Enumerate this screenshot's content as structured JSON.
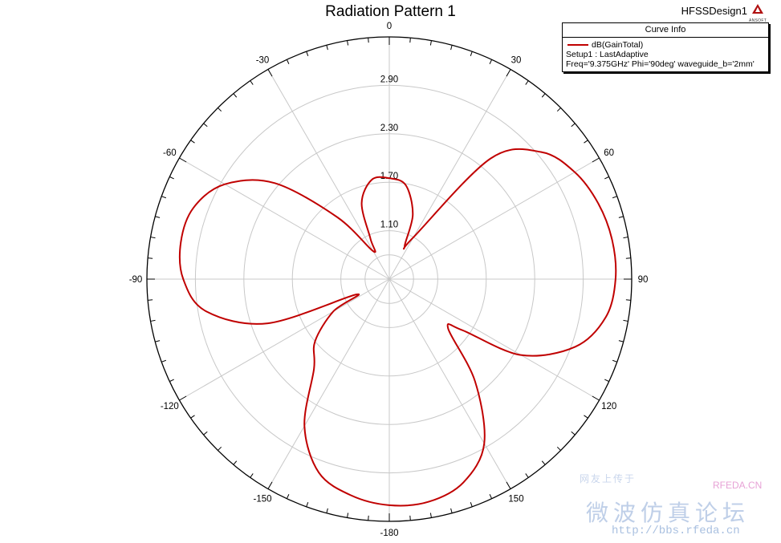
{
  "title": "Radiation Pattern 1",
  "design_name": "HFSSDesign1",
  "logo_text": "ANSOFT",
  "legend": {
    "header": "Curve Info",
    "series_name": "dB(GainTotal)",
    "line2": "Setup1 : LastAdaptive",
    "line3": "Freq='9.375GHz' Phi='90deg' waveguide_b='2mm'"
  },
  "colors": {
    "series": "#c00000",
    "grid": "#c8c8c8",
    "axis": "#000000"
  },
  "chart_data": {
    "type": "polar-line",
    "title": "Radiation Pattern 1",
    "angle_ticks": [
      "0",
      "30",
      "60",
      "90",
      "120",
      "150",
      "-180",
      "-150",
      "-120",
      "-90",
      "-60",
      "-30"
    ],
    "radial_ticks": [
      "1.10",
      "1.70",
      "2.30",
      "2.90"
    ],
    "radial_range": [
      0.5,
      3.5
    ],
    "grid": true,
    "legend_position": "top-right",
    "series": [
      {
        "name": "dB(GainTotal)",
        "theta_deg": [
          0,
          10,
          20,
          25,
          30,
          40,
          50,
          60,
          70,
          80,
          90,
          100,
          110,
          120,
          125,
          130,
          140,
          150,
          160,
          170,
          180,
          190,
          200,
          210,
          220,
          230,
          240,
          245,
          250,
          260,
          270,
          280,
          290,
          300,
          310,
          320,
          330,
          335,
          340,
          350,
          360
        ],
        "gain": [
          1.75,
          1.68,
          1.35,
          0.95,
          1.1,
          2.45,
          2.95,
          3.15,
          3.25,
          3.3,
          3.3,
          3.22,
          2.95,
          2.38,
          1.6,
          1.45,
          2.15,
          2.85,
          3.18,
          3.3,
          3.3,
          3.22,
          3.05,
          2.6,
          1.95,
          1.7,
          1.3,
          0.95,
          2.1,
          2.8,
          3.05,
          3.12,
          3.08,
          2.85,
          2.35,
          1.5,
          0.9,
          1.05,
          1.5,
          1.75,
          1.75
        ]
      }
    ]
  },
  "watermark": {
    "small": "网友上传于",
    "brand": "RFEDA.CN",
    "forum": "微波仿真论坛",
    "url": "http://bbs.rfeda.cn"
  }
}
